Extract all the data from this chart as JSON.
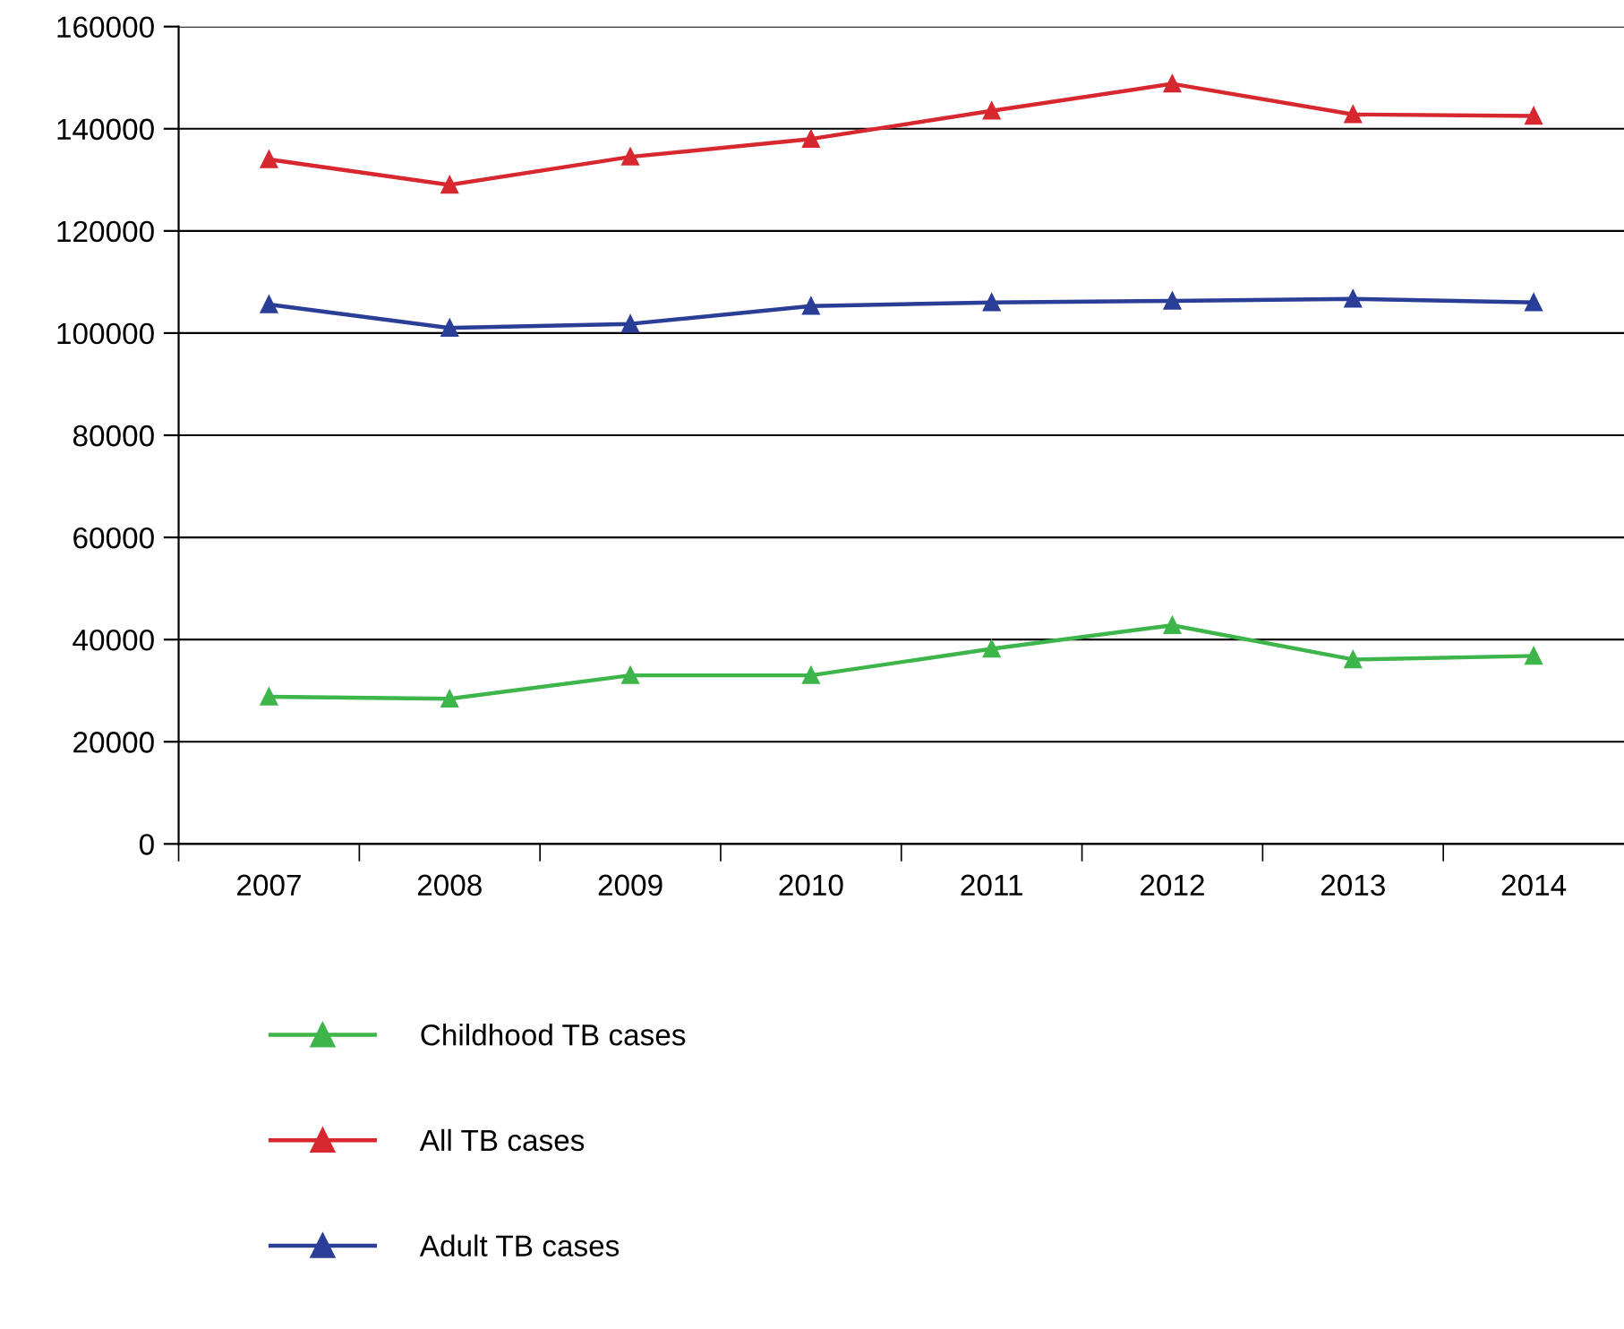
{
  "chart_data": {
    "type": "line",
    "categories": [
      "2007",
      "2008",
      "2009",
      "2010",
      "2011",
      "2012",
      "2013",
      "2014"
    ],
    "series": [
      {
        "name": "Childhood TB cases",
        "color": "#3db54a",
        "values": [
          28800,
          28400,
          33000,
          33000,
          38200,
          42800,
          36100,
          36800
        ]
      },
      {
        "name": "All TB cases",
        "color": "#d7282f",
        "values": [
          134000,
          129000,
          134500,
          138000,
          143500,
          148800,
          142800,
          142500
        ]
      },
      {
        "name": "Adult TB cases",
        "color": "#2b3e97",
        "values": [
          105600,
          101000,
          101800,
          105300,
          106000,
          106300,
          106700,
          106000
        ]
      }
    ],
    "ylim": [
      0,
      160000
    ],
    "yticks": [
      0,
      20000,
      40000,
      60000,
      80000,
      100000,
      120000,
      140000,
      160000
    ],
    "grid": "y",
    "legend": "bottom",
    "marker": "triangle",
    "line_style": "solid"
  }
}
